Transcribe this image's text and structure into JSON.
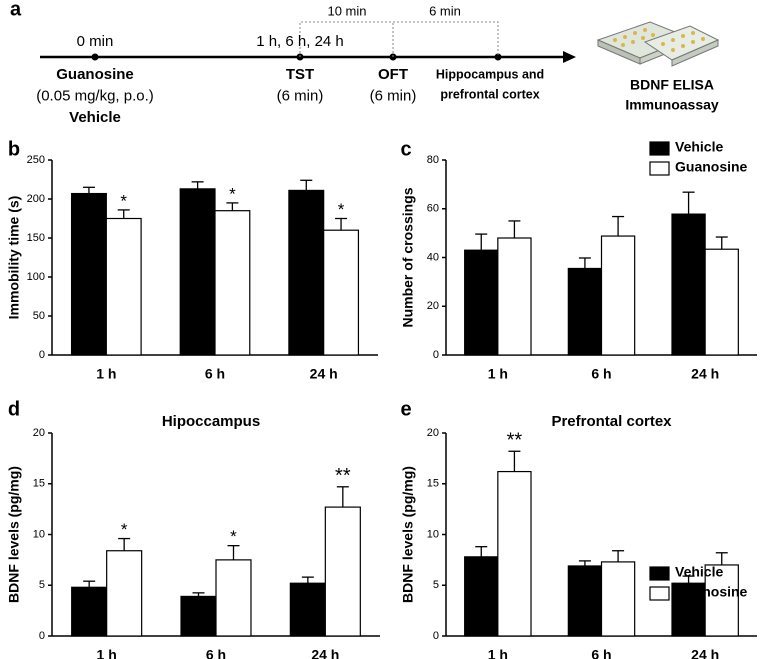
{
  "timeline": {
    "panel_label": "a",
    "points": [
      {
        "time": "0 min",
        "lines": [
          "Guanosine",
          "(0.05 mg/kg, p.o.)",
          "Vehicle"
        ]
      },
      {
        "time": "1 h, 6 h, 24 h",
        "lines": [
          "TST",
          "(6 min)"
        ]
      },
      {
        "lines": [
          "OFT",
          "(6 min)"
        ]
      },
      {
        "lines": [
          "Hippocampus and",
          "prefrontal cortex"
        ]
      }
    ],
    "intervals": [
      "10 min",
      "6 min"
    ],
    "endpoint": [
      "BDNF ELISA",
      "Immunoassay"
    ]
  },
  "chart_data": [
    {
      "type": "bar",
      "panel_label": "b",
      "y_label": "Immobility time (s)",
      "categories": [
        "1 h",
        "6 h",
        "24 h"
      ],
      "series": [
        {
          "color": "#000000",
          "values": [
            207,
            213,
            211
          ],
          "errors": [
            8,
            9,
            13
          ]
        },
        {
          "color": "#ffffff",
          "values": [
            175,
            185,
            160
          ],
          "errors": [
            11,
            10,
            15
          ],
          "significance": [
            "*",
            "*",
            "*"
          ]
        }
      ],
      "ylim": [
        0,
        250
      ],
      "yticks": [
        0,
        50,
        100,
        150,
        200,
        250
      ]
    },
    {
      "type": "bar",
      "panel_label": "c",
      "y_label": "Number of crossings",
      "categories": [
        "1 h",
        "6 h",
        "24 h"
      ],
      "series": [
        {
          "name": "Vehicle",
          "color": "#000000",
          "values": [
            43,
            35.5,
            57.8
          ],
          "errors": [
            6.6,
            4.3,
            9
          ]
        },
        {
          "name": "Guanosine",
          "color": "#ffffff",
          "values": [
            48,
            48.8,
            43.4
          ],
          "errors": [
            7,
            8,
            5
          ]
        }
      ],
      "ylim": [
        0,
        80
      ],
      "yticks": [
        0,
        20,
        40,
        60,
        80
      ]
    },
    {
      "type": "bar",
      "panel_label": "d",
      "title": "Hipoccampus",
      "y_label": "BDNF levels  (pg/mg)",
      "categories": [
        "1 h",
        "6 h",
        "24 h"
      ],
      "series": [
        {
          "color": "#000000",
          "values": [
            4.8,
            3.9,
            5.2
          ],
          "errors": [
            0.6,
            0.35,
            0.6
          ]
        },
        {
          "color": "#ffffff",
          "values": [
            8.4,
            7.5,
            12.7
          ],
          "errors": [
            1.2,
            1.4,
            2
          ]
        },
        {
          "significance": [
            "*",
            "*",
            "**"
          ]
        }
      ],
      "ylim": [
        0,
        20
      ],
      "yticks": [
        0,
        5,
        10,
        15,
        20
      ]
    },
    {
      "type": "bar",
      "panel_label": "e",
      "title": "Prefrontal cortex",
      "y_label": "BDNF levels (pg/mg)",
      "categories": [
        "1 h",
        "6 h",
        "24 h"
      ],
      "series": [
        {
          "name": "Vehicle",
          "color": "#000000",
          "values": [
            7.8,
            6.9,
            5.2
          ],
          "errors": [
            1,
            0.5,
            0.7
          ]
        },
        {
          "name": "Guanosine",
          "color": "#ffffff",
          "values": [
            16.2,
            7.3,
            7
          ],
          "errors": [
            2,
            1.1,
            1.2
          ],
          "significance": [
            "**",
            null,
            null
          ]
        }
      ],
      "ylim": [
        0,
        20
      ],
      "yticks": [
        0,
        5,
        10,
        15,
        20
      ]
    }
  ]
}
